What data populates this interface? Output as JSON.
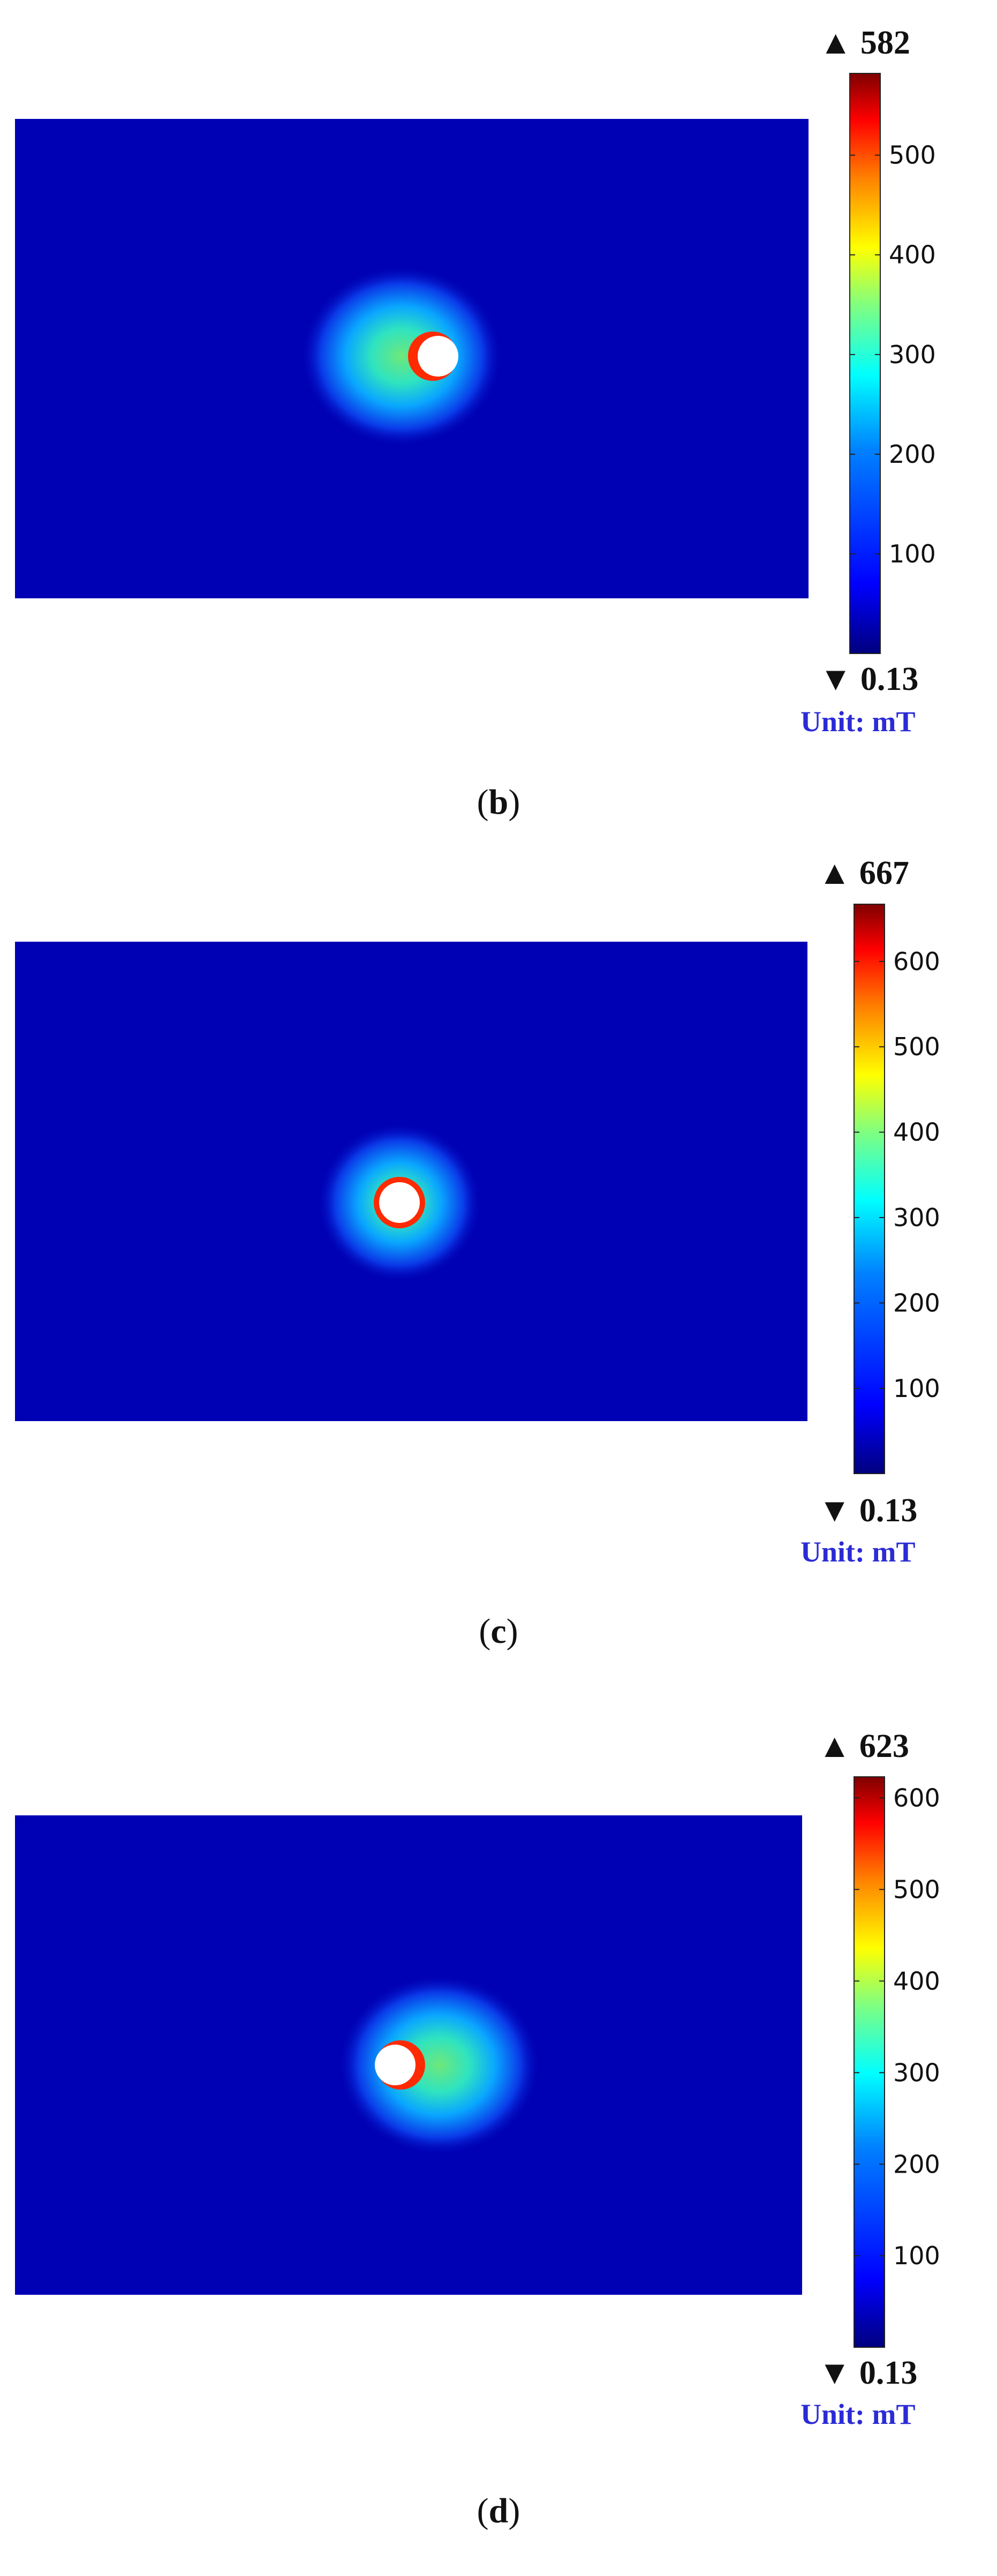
{
  "colors": {
    "field_background": "#0000b4",
    "tick_text": "#111111",
    "unit_text": "#2b2bd6",
    "colormap": [
      "#00007f",
      "#0000ff",
      "#0080ff",
      "#00ffff",
      "#80ff80",
      "#ffff00",
      "#ff8000",
      "#ff0000",
      "#7f0000"
    ]
  },
  "chart_data": [
    {
      "type": "heatmap",
      "panel_label": "b",
      "quantity_unit": "mT",
      "unit_label": "Unit: mT",
      "colorbar": {
        "max_label": "▲ 582",
        "min_label": "▼ 0.13",
        "max": 582,
        "min": 0.13,
        "ticks": [
          100,
          200,
          300,
          400,
          500
        ]
      },
      "field": {
        "core_relative": [
          0.53,
          0.5
        ],
        "halo_relative": [
          0.47,
          0.5
        ],
        "halo_peak_value": 300,
        "ring_peak_value": 582,
        "core": "white disc"
      }
    },
    {
      "type": "heatmap",
      "panel_label": "c",
      "quantity_unit": "mT",
      "unit_label": "Unit: mT",
      "colorbar": {
        "max_label": "▲ 667",
        "min_label": "▼ 0.13",
        "max": 667,
        "min": 0.13,
        "ticks": [
          100,
          200,
          300,
          400,
          500,
          600
        ]
      },
      "field": {
        "core_relative": [
          0.49,
          0.5
        ],
        "halo_relative": [
          0.49,
          0.5
        ],
        "halo_peak_value": 330,
        "ring_peak_value": 667,
        "core": "white disc"
      }
    },
    {
      "type": "heatmap",
      "panel_label": "d",
      "quantity_unit": "mT",
      "unit_label": "Unit: mT",
      "colorbar": {
        "max_label": "▲ 623",
        "min_label": "▼ 0.13",
        "max": 623,
        "min": 0.13,
        "ticks": [
          100,
          200,
          300,
          400,
          500,
          600
        ]
      },
      "field": {
        "core_relative": [
          0.48,
          0.5
        ],
        "halo_relative": [
          0.56,
          0.5
        ],
        "halo_peak_value": 300,
        "ring_peak_value": 623,
        "core": "white disc"
      }
    }
  ]
}
